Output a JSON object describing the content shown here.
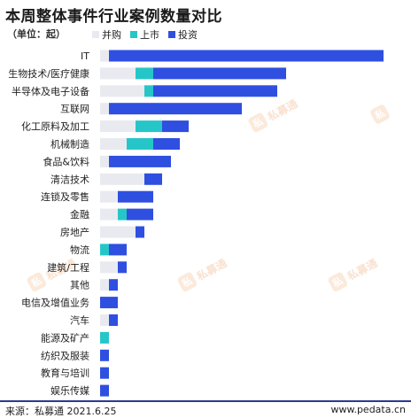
{
  "title": "本周整体事件行业案例数量对比",
  "unit_label": "（单位：起）",
  "legend": [
    {
      "label": "并购",
      "color": "#e8eaf0"
    },
    {
      "label": "上市",
      "color": "#26c6c8"
    },
    {
      "label": "投资",
      "color": "#2f4fe0"
    }
  ],
  "watermark": {
    "logo": "私",
    "text": "私募通"
  },
  "footer": {
    "source": "来源：私募通 2021.6.25",
    "url": "www.pedata.cn"
  },
  "chart_data": {
    "type": "bar",
    "orientation": "horizontal",
    "stacked": true,
    "categories": [
      "IT",
      "生物技术/医疗健康",
      "半导体及电子设备",
      "互联网",
      "化工原料及加工",
      "机械制造",
      "食品&饮料",
      "清洁技术",
      "连锁及零售",
      "金融",
      "房地产",
      "物流",
      "建筑/工程",
      "其他",
      "电信及增值业务",
      "汽车",
      "能源及矿产",
      "纺织及服装",
      "教育与培训",
      "娱乐传媒"
    ],
    "series": [
      {
        "name": "并购",
        "values": [
          1,
          4,
          5,
          1,
          4,
          3,
          1,
          5,
          2,
          2,
          4,
          0,
          2,
          1,
          0,
          1,
          0,
          0,
          0,
          0
        ]
      },
      {
        "name": "上市",
        "values": [
          0,
          2,
          1,
          0,
          3,
          3,
          0,
          0,
          0,
          1,
          0,
          1,
          0,
          0,
          0,
          0,
          1,
          0,
          0,
          0
        ]
      },
      {
        "name": "投资",
        "values": [
          31,
          15,
          14,
          15,
          3,
          3,
          7,
          2,
          4,
          3,
          1,
          2,
          1,
          1,
          2,
          1,
          0,
          1,
          1,
          1
        ]
      }
    ],
    "xlim": [
      0,
      32
    ],
    "grid": false,
    "legend_position": "top-left"
  }
}
